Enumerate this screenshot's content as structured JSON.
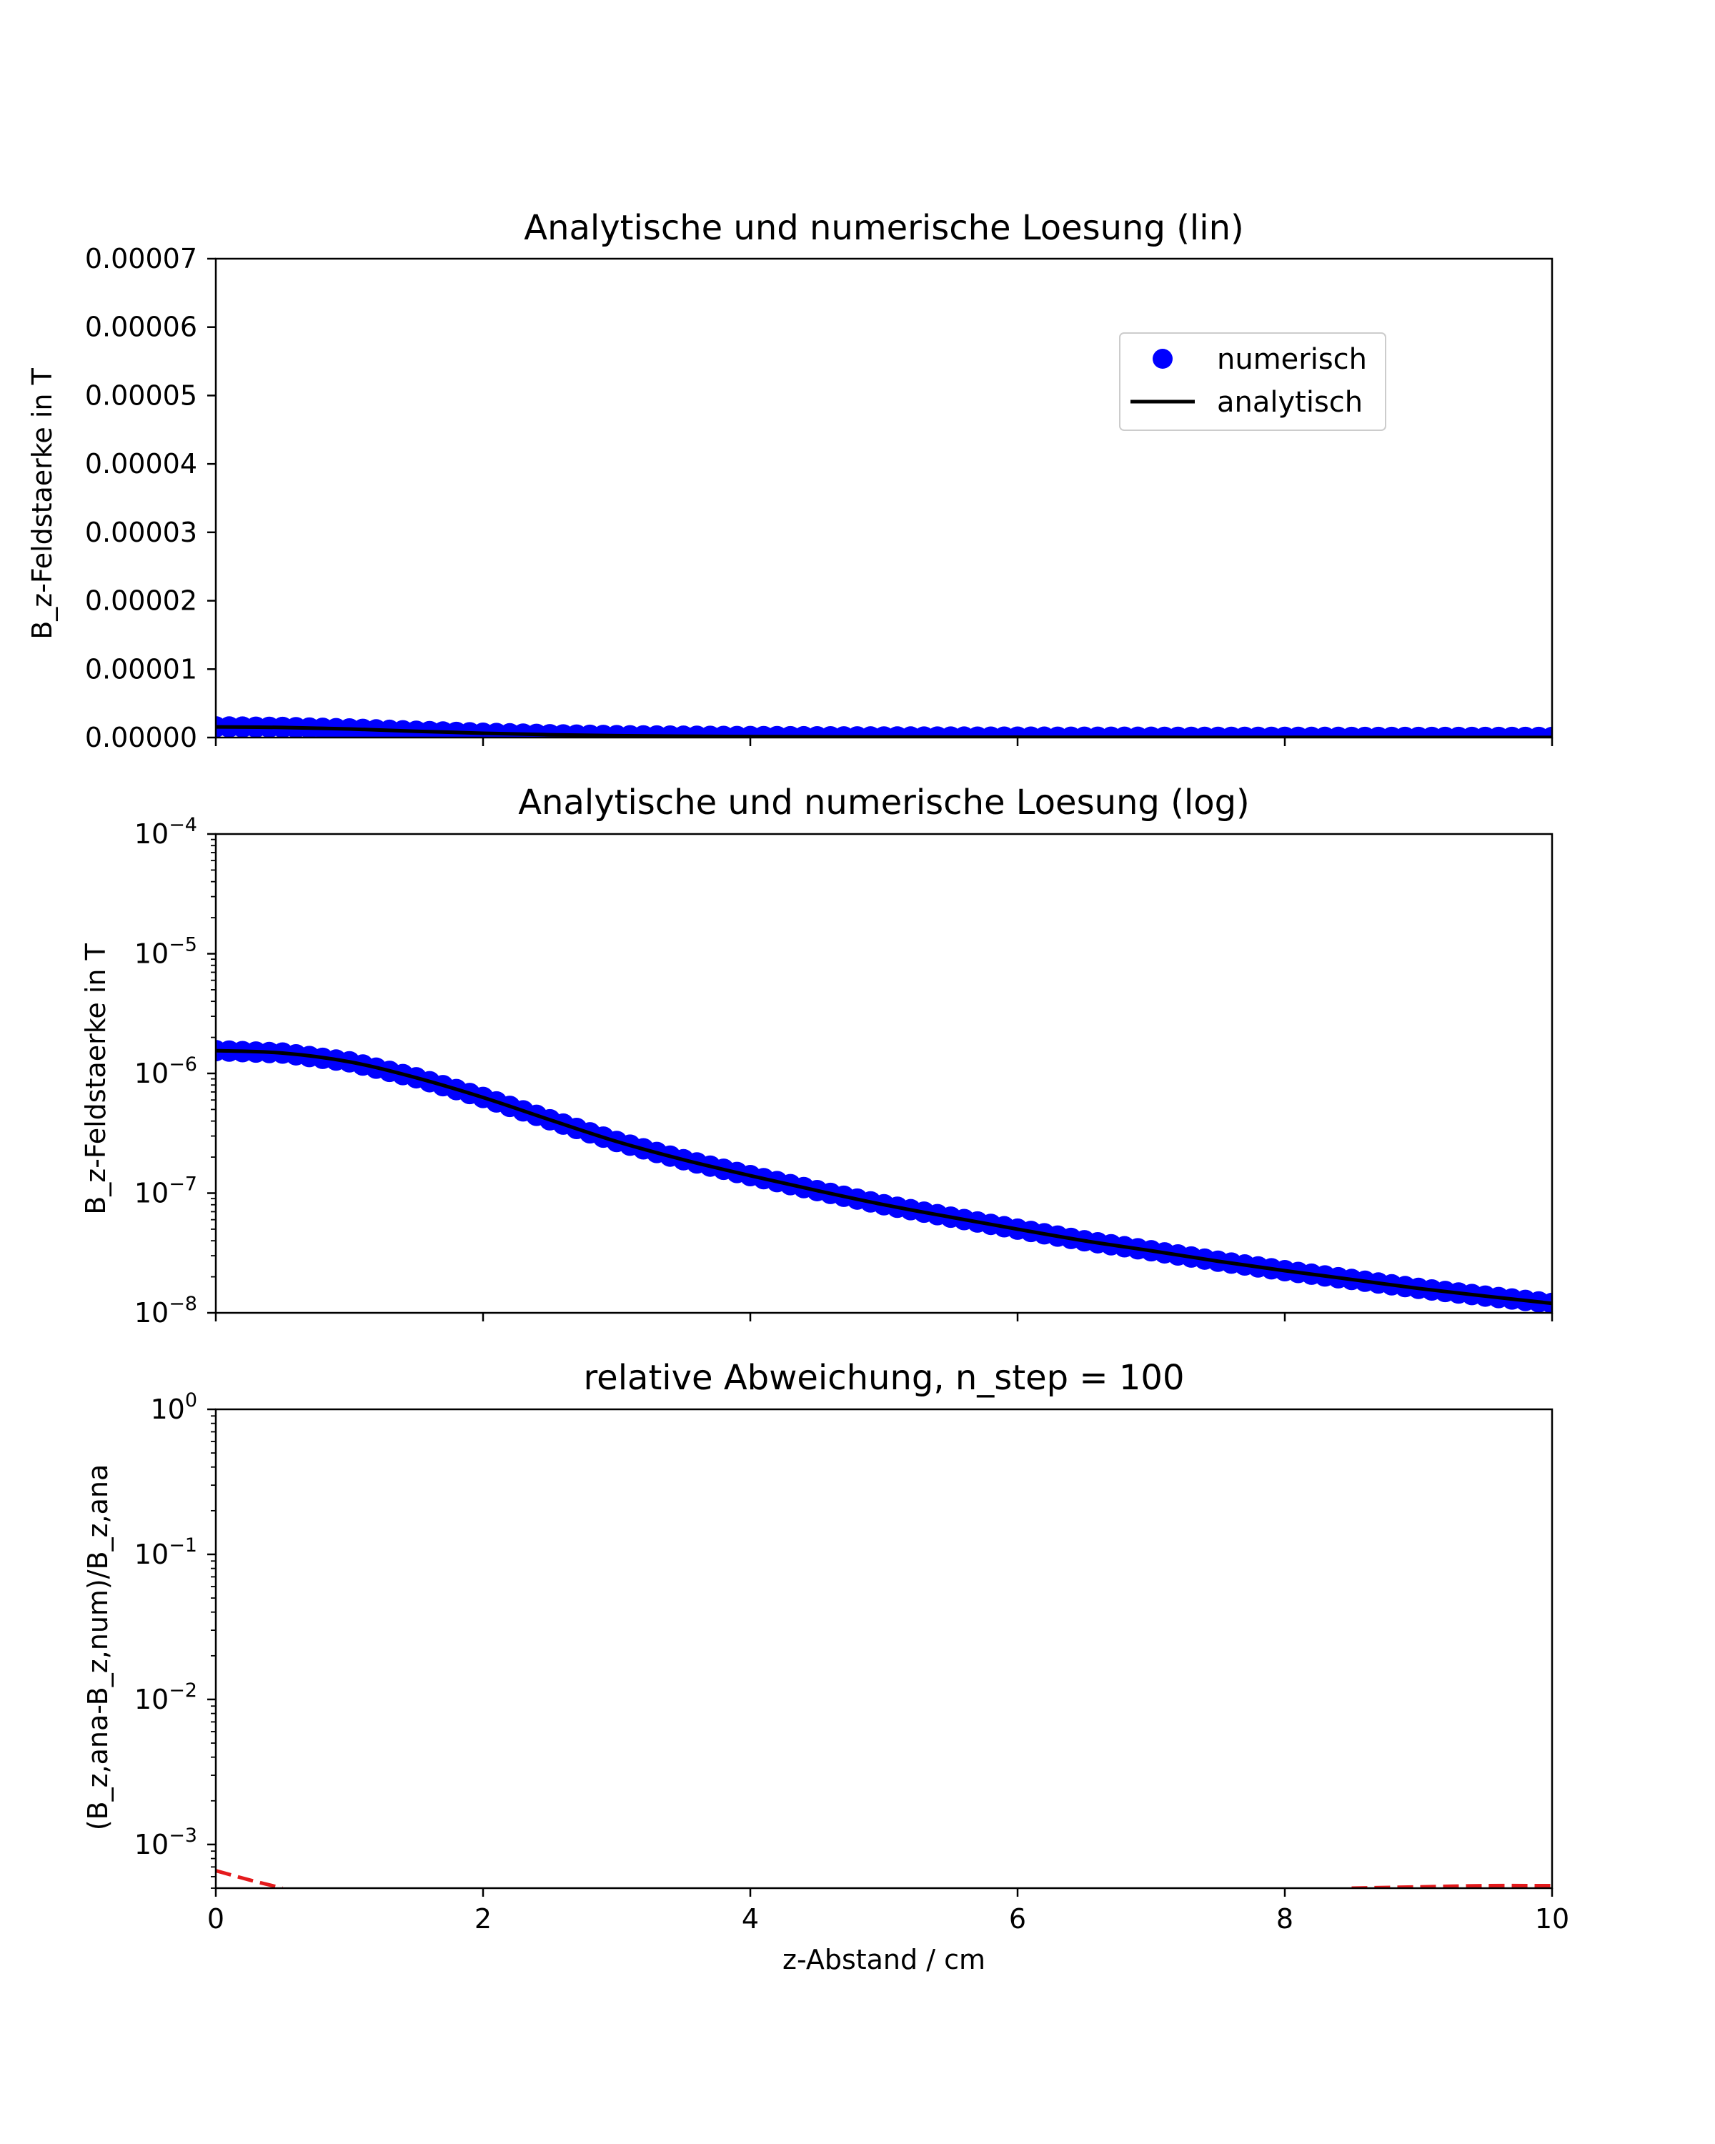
{
  "chart_data": [
    {
      "type": "line",
      "title": "Analytische und numerische Loesung (lin)",
      "xlabel": "",
      "ylabel": "B_z-Feldstaerke in T",
      "xlim": [
        0,
        10
      ],
      "ylim": [
        0,
        7e-05
      ],
      "yscale": "linear",
      "xticks": [
        0,
        2,
        4,
        6,
        8,
        10
      ],
      "xtick_labels": [
        "",
        "",
        "",
        "",
        "",
        ""
      ],
      "yticks": [
        0,
        1e-05,
        2e-05,
        3e-05,
        4e-05,
        5e-05,
        6e-05,
        7e-05
      ],
      "ytick_labels": [
        "0.00000",
        "0.00001",
        "0.00002",
        "0.00003",
        "0.00004",
        "0.00005",
        "0.00006",
        "0.00007"
      ],
      "legend": {
        "position": "upper right",
        "entries": [
          {
            "label": "numerisch",
            "marker": "circle",
            "color": "#0000ff"
          },
          {
            "label": "analytisch",
            "marker": "line",
            "color": "#000000"
          }
        ]
      },
      "series": [
        {
          "name": "numerisch",
          "style": "markers",
          "color": "#0000ff",
          "x": [
            0,
            0.5,
            1,
            1.5,
            2,
            2.5,
            3,
            3.5,
            4,
            4.5,
            5,
            5.5,
            6,
            6.5,
            7,
            7.5,
            8,
            8.5,
            9,
            9.5,
            10
          ],
          "y": [
            1.55e-06,
            1.48e-06,
            1.25e-06,
            9.2e-07,
            6.3e-07,
            4.1e-07,
            2.7e-07,
            1.9e-07,
            1.4e-07,
            1.05e-07,
            8e-08,
            6.3e-08,
            5e-08,
            4e-08,
            3.3e-08,
            2.7e-08,
            2.25e-08,
            1.9e-08,
            1.6e-08,
            1.38e-08,
            1.2e-08
          ]
        },
        {
          "name": "analytisch",
          "style": "line",
          "color": "#000000",
          "x": [
            0,
            0.5,
            1,
            1.5,
            2,
            2.5,
            3,
            3.5,
            4,
            4.5,
            5,
            5.5,
            6,
            6.5,
            7,
            7.5,
            8,
            8.5,
            9,
            9.5,
            10
          ],
          "y": [
            1.55e-06,
            1.48e-06,
            1.25e-06,
            9.2e-07,
            6.3e-07,
            4.1e-07,
            2.7e-07,
            1.9e-07,
            1.4e-07,
            1.05e-07,
            8e-08,
            6.3e-08,
            5e-08,
            4e-08,
            3.3e-08,
            2.7e-08,
            2.25e-08,
            1.9e-08,
            1.6e-08,
            1.38e-08,
            1.2e-08
          ]
        }
      ]
    },
    {
      "type": "line",
      "title": "Analytische und numerische Loesung (log)",
      "xlabel": "",
      "ylabel": "B_z-Feldstaerke in T",
      "xlim": [
        0,
        10
      ],
      "ylim": [
        1e-08,
        0.0001
      ],
      "yscale": "log",
      "xticks": [
        0,
        2,
        4,
        6,
        8,
        10
      ],
      "xtick_labels": [
        "",
        "",
        "",
        "",
        "",
        ""
      ],
      "yticks": [
        1e-08,
        1e-07,
        1e-06,
        1e-05,
        0.0001
      ],
      "ytick_labels": [
        {
          "base": "10",
          "exp": "−8"
        },
        {
          "base": "10",
          "exp": "−7"
        },
        {
          "base": "10",
          "exp": "−6"
        },
        {
          "base": "10",
          "exp": "−5"
        },
        {
          "base": "10",
          "exp": "−4"
        }
      ],
      "series": [
        {
          "name": "numerisch",
          "style": "markers",
          "color": "#0000ff",
          "x": [
            0,
            0.5,
            1,
            1.5,
            2,
            2.5,
            3,
            3.5,
            4,
            4.5,
            5,
            5.5,
            6,
            6.5,
            7,
            7.5,
            8,
            8.5,
            9,
            9.5,
            10
          ],
          "y": [
            1.55e-06,
            1.48e-06,
            1.25e-06,
            9.2e-07,
            6.3e-07,
            4.1e-07,
            2.7e-07,
            1.9e-07,
            1.4e-07,
            1.05e-07,
            8e-08,
            6.3e-08,
            5e-08,
            4e-08,
            3.3e-08,
            2.7e-08,
            2.25e-08,
            1.9e-08,
            1.6e-08,
            1.38e-08,
            1.2e-08
          ]
        },
        {
          "name": "analytisch",
          "style": "line",
          "color": "#000000",
          "x": [
            0,
            0.5,
            1,
            1.5,
            2,
            2.5,
            3,
            3.5,
            4,
            4.5,
            5,
            5.5,
            6,
            6.5,
            7,
            7.5,
            8,
            8.5,
            9,
            9.5,
            10
          ],
          "y": [
            1.55e-06,
            1.48e-06,
            1.25e-06,
            9.2e-07,
            6.3e-07,
            4.1e-07,
            2.7e-07,
            1.9e-07,
            1.4e-07,
            1.05e-07,
            8e-08,
            6.3e-08,
            5e-08,
            4e-08,
            3.3e-08,
            2.7e-08,
            2.25e-08,
            1.9e-08,
            1.6e-08,
            1.38e-08,
            1.2e-08
          ]
        }
      ]
    },
    {
      "type": "line",
      "title": "relative Abweichung, n_step = 100",
      "xlabel": "z-Abstand / cm",
      "ylabel": "(B_z,ana-B_z,num)/B_z,ana",
      "xlim": [
        0,
        10
      ],
      "ylim": [
        0.0005,
        1
      ],
      "yscale": "log",
      "xticks": [
        0,
        2,
        4,
        6,
        8,
        10
      ],
      "xtick_labels": [
        "0",
        "2",
        "4",
        "6",
        "8",
        "10"
      ],
      "yticks": [
        0.001,
        0.01,
        0.1,
        1
      ],
      "ytick_labels": [
        {
          "base": "10",
          "exp": "−3"
        },
        {
          "base": "10",
          "exp": "−2"
        },
        {
          "base": "10",
          "exp": "−1"
        },
        {
          "base": "10",
          "exp": "0"
        }
      ],
      "series": [
        {
          "style": "dashed",
          "color": "#e41a1c",
          "segments": [
            {
              "x": [
                0,
                0.25,
                0.5
              ],
              "y": [
                0.00066,
                0.00057,
                0.0005
              ]
            },
            {
              "x": [
                8.5,
                9,
                9.5,
                10
              ],
              "y": [
                0.0005,
                0.00051,
                0.00052,
                0.00052
              ]
            }
          ]
        }
      ]
    }
  ]
}
